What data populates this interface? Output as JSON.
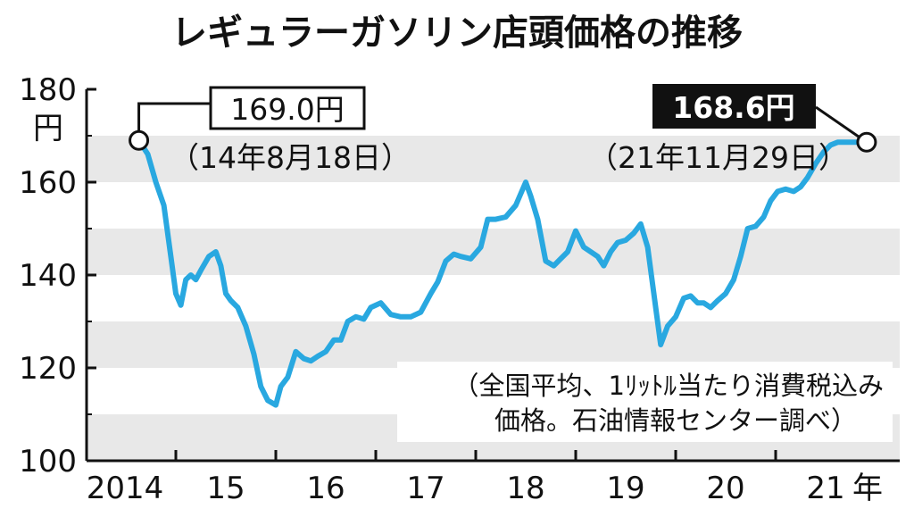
{
  "chart_data": {
    "type": "line",
    "title": "レギュラーガソリン店頭価格の推移",
    "ylabel": "円",
    "xlabel": "年",
    "ylim": [
      100,
      180
    ],
    "yticks": [
      100,
      120,
      140,
      160,
      180
    ],
    "xlim": [
      2014.0,
      2022.0
    ],
    "xticks": [
      {
        "label": "2014",
        "year": 2014
      },
      {
        "label": "15",
        "year": 2015
      },
      {
        "label": "16",
        "year": 2016
      },
      {
        "label": "17",
        "year": 2017
      },
      {
        "label": "18",
        "year": 2018
      },
      {
        "label": "19",
        "year": 2019
      },
      {
        "label": "20",
        "year": 2020
      },
      {
        "label": "21",
        "year": 2021
      }
    ],
    "note": [
      "（全国平均、1ﾘｯﾄﾙ当たり消費税込み",
      "価格。石油情報センター調べ）"
    ],
    "annotations": [
      {
        "value_label": "169.0円",
        "date_label": "（14年8月18日）",
        "x": 2014.63,
        "y": 169.0,
        "style": "outline"
      },
      {
        "value_label": "168.6円",
        "date_label": "（21年11月29日）",
        "x": 2021.91,
        "y": 168.6,
        "style": "filled"
      }
    ],
    "series": [
      {
        "name": "レギュラーガソリン店頭価格",
        "x": [
          2014.63,
          2014.72,
          2014.8,
          2014.88,
          2014.95,
          2015.0,
          2015.05,
          2015.1,
          2015.15,
          2015.2,
          2015.25,
          2015.33,
          2015.4,
          2015.45,
          2015.5,
          2015.55,
          2015.62,
          2015.7,
          2015.78,
          2015.85,
          2015.92,
          2016.0,
          2016.05,
          2016.12,
          2016.2,
          2016.28,
          2016.35,
          2016.42,
          2016.5,
          2016.58,
          2016.65,
          2016.72,
          2016.8,
          2016.88,
          2016.95,
          2017.05,
          2017.15,
          2017.25,
          2017.35,
          2017.45,
          2017.55,
          2017.62,
          2017.7,
          2017.78,
          2017.85,
          2017.95,
          2018.05,
          2018.12,
          2018.2,
          2018.3,
          2018.4,
          2018.5,
          2018.55,
          2018.62,
          2018.7,
          2018.78,
          2018.85,
          2018.92,
          2019.0,
          2019.08,
          2019.15,
          2019.22,
          2019.28,
          2019.35,
          2019.42,
          2019.5,
          2019.58,
          2019.65,
          2019.72,
          2019.8,
          2019.85,
          2019.92,
          2020.0,
          2020.08,
          2020.15,
          2020.22,
          2020.28,
          2020.35,
          2020.42,
          2020.5,
          2020.58,
          2020.65,
          2020.72,
          2020.8,
          2020.88,
          2020.95,
          2021.02,
          2021.1,
          2021.18,
          2021.25,
          2021.32,
          2021.4,
          2021.48,
          2021.55,
          2021.62,
          2021.7,
          2021.78,
          2021.85,
          2021.91
        ],
        "values": [
          169.0,
          166.0,
          160.0,
          155.0,
          144.0,
          136.0,
          133.5,
          139.0,
          140.0,
          139.0,
          141.0,
          144.0,
          145.0,
          142.0,
          136.0,
          134.5,
          133.0,
          129.0,
          123.0,
          116.0,
          113.0,
          112.0,
          116.0,
          118.0,
          123.5,
          122.0,
          121.5,
          122.5,
          123.5,
          126.0,
          126.0,
          130.0,
          131.0,
          130.5,
          133.0,
          134.0,
          131.5,
          131.0,
          131.0,
          132.0,
          136.0,
          138.5,
          143.0,
          144.5,
          144.0,
          143.5,
          146.0,
          152.0,
          152.0,
          152.5,
          155.0,
          160.0,
          157.0,
          152.0,
          143.0,
          142.0,
          143.5,
          145.0,
          149.5,
          146.0,
          145.0,
          144.0,
          142.0,
          145.0,
          147.0,
          147.5,
          149.0,
          151.0,
          146.0,
          133.0,
          125.0,
          129.0,
          131.0,
          135.0,
          135.5,
          134.0,
          134.0,
          133.0,
          134.5,
          136.0,
          139.0,
          144.0,
          150.0,
          150.5,
          152.5,
          156.0,
          158.0,
          158.5,
          158.0,
          159.0,
          161.0,
          164.0,
          166.5,
          168.0,
          168.6,
          168.6,
          168.6,
          168.6,
          168.6
        ]
      }
    ]
  }
}
